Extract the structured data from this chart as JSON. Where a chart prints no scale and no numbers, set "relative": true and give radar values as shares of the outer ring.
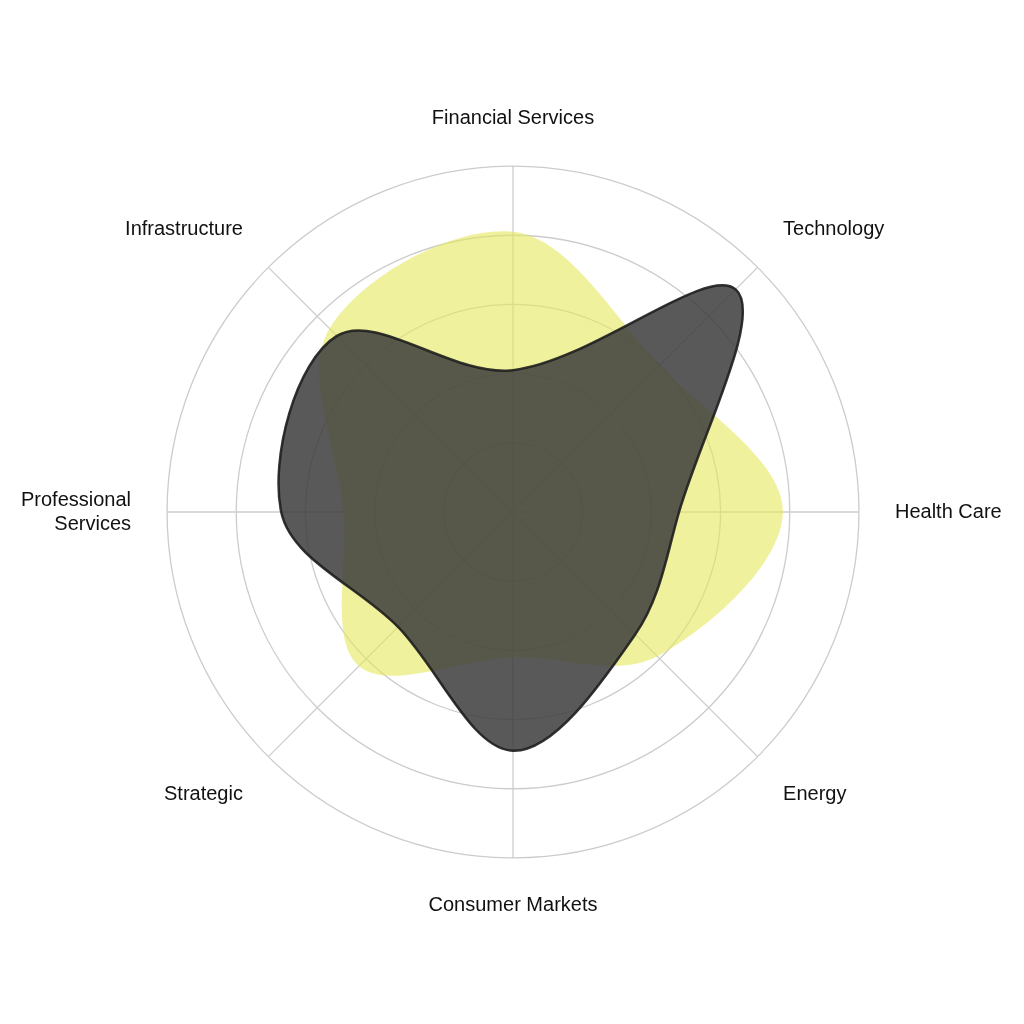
{
  "chart_data": {
    "type": "radar",
    "relative": true,
    "categories": [
      "Financial Services",
      "Technology",
      "Health Care",
      "Energy",
      "Consumer Markets",
      "Strategic",
      "Professional Services",
      "Infrastructure"
    ],
    "series": [
      {
        "color": "#e6e85a",
        "values": [
          0.81,
          0.6,
          0.78,
          0.59,
          0.42,
          0.63,
          0.49,
          0.75
        ]
      },
      {
        "color": "#3c3c3c",
        "values": [
          0.41,
          0.91,
          0.48,
          0.5,
          0.69,
          0.47,
          0.67,
          0.72
        ]
      }
    ],
    "grid": true,
    "legend": false
  }
}
